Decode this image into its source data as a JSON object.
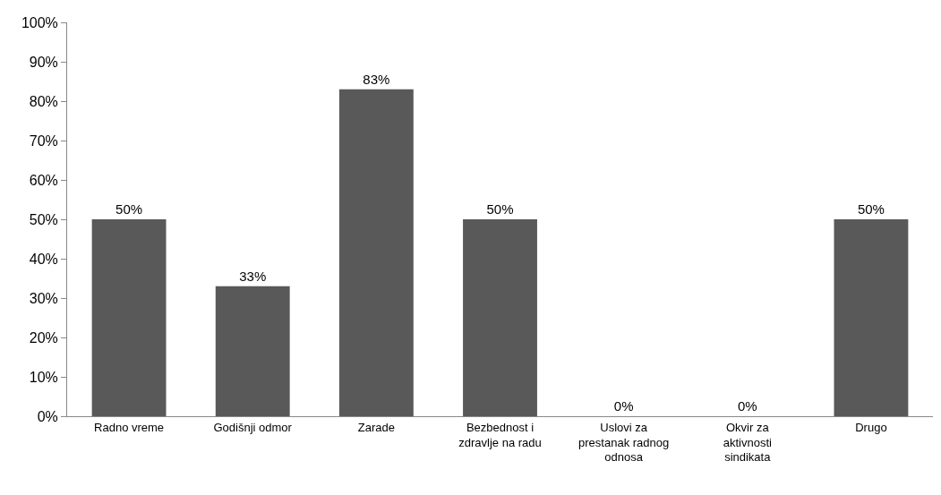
{
  "chart_data": {
    "type": "bar",
    "categories": [
      "Radno vreme",
      "Godišnji odmor",
      "Zarade",
      "Bezbednost i zdravlje na radu",
      "Uslovi za prestanak radnog odnosa",
      "Okvir za aktivnosti sindikata",
      "Drugo"
    ],
    "values": [
      50,
      33,
      83,
      50,
      0,
      0,
      50
    ],
    "value_labels": [
      "50%",
      "33%",
      "83%",
      "50%",
      "0%",
      "0%",
      "50%"
    ],
    "color": "#595959",
    "ylim": [
      0,
      100
    ],
    "yticks": [
      {
        "value": 0,
        "label": "0%"
      },
      {
        "value": 10,
        "label": "10%"
      },
      {
        "value": 20,
        "label": "20%"
      },
      {
        "value": 30,
        "label": "30%"
      },
      {
        "value": 40,
        "label": "40%"
      },
      {
        "value": 50,
        "label": "50%"
      },
      {
        "value": 60,
        "label": "60%"
      },
      {
        "value": 70,
        "label": "70%"
      },
      {
        "value": 80,
        "label": "80%"
      },
      {
        "value": 90,
        "label": "90%"
      },
      {
        "value": 100,
        "label": "100%"
      }
    ],
    "grid": false
  }
}
